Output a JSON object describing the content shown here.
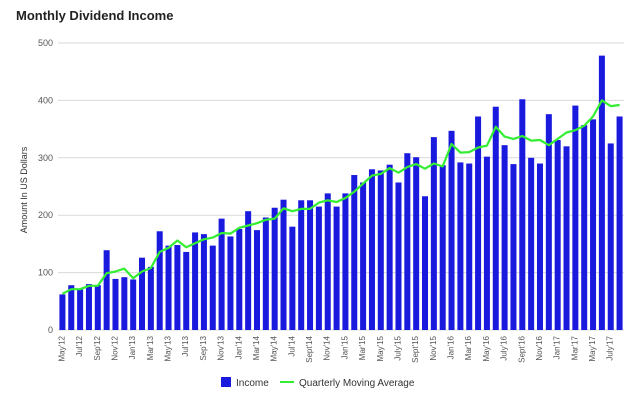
{
  "chart_data": {
    "type": "bar",
    "title": "Monthly Dividend Income",
    "ylabel": "Amount In US Dollars",
    "xlabel": "",
    "ylim": [
      0,
      500
    ],
    "yticks": [
      0,
      100,
      200,
      300,
      400,
      500
    ],
    "grid": true,
    "legend": "bottom",
    "categories": [
      "May'12",
      "Jun'12",
      "Jul'12",
      "Aug'12",
      "Sep'12",
      "Oct'12",
      "Nov'12",
      "Dec'12",
      "Jan'13",
      "Feb'13",
      "Mar'13",
      "Apr'13",
      "May'13",
      "Jun'13",
      "Jul'13",
      "Aug'13",
      "Sep'13",
      "Oct'13",
      "Nov'13",
      "Dec'13",
      "Jan'14",
      "Feb'14",
      "Mar'14",
      "Apr'14",
      "May'14",
      "Jun'14",
      "Jul'14",
      "Aug'14",
      "Sept'14",
      "Oct'14",
      "Nov'14",
      "Dec'14",
      "Jan'15",
      "Feb'15",
      "Mar'15",
      "Apr'15",
      "May'15",
      "Jun'15",
      "July'15",
      "Aug'15",
      "Sept'15",
      "Oct'15",
      "Nov'15",
      "Dec'15",
      "Jan'16",
      "Feb'16",
      "Mar'16",
      "Apr'16",
      "May'16",
      "Jun'16",
      "July'16",
      "Aug'16",
      "Sept'16",
      "Oct'16",
      "Nov'16",
      "Dec'16",
      "Jan'17",
      "Feb'17",
      "Mar'17",
      "Apr'17",
      "May'17",
      "Jun'17",
      "July'17",
      "Aug'17"
    ],
    "tick_labels": [
      "May'12",
      "Jul'12",
      "Sep'12",
      "Nov'12",
      "Jan'13",
      "Mar'13",
      "May'13",
      "Jul'13",
      "Sep'13",
      "Nov'13",
      "Jan'14",
      "Mar'14",
      "May'14",
      "Jul'14",
      "Sept'14",
      "Nov'14",
      "Jan'15",
      "Mar'15",
      "May'15",
      "July'15",
      "Sept'15",
      "Nov'15",
      "Jan'16",
      "Mar'16",
      "May'16",
      "July'16",
      "Sept'16",
      "Nov'16",
      "Jan'17",
      "Mar'17",
      "May'17",
      "July'17"
    ],
    "series": [
      {
        "name": "Income",
        "color": "#1a1adf",
        "values": [
          62,
          78,
          72,
          80,
          78,
          139,
          89,
          92,
          88,
          126,
          110,
          172,
          147,
          148,
          136,
          170,
          167,
          147,
          194,
          163,
          176,
          207,
          174,
          196,
          213,
          227,
          180,
          226,
          226,
          215,
          238,
          215,
          238,
          270,
          257,
          280,
          278,
          288,
          257,
          308,
          301,
          233,
          336,
          287,
          347,
          292,
          290,
          372,
          302,
          389,
          322,
          289,
          402,
          300,
          290,
          376,
          331,
          320,
          391,
          357,
          367,
          478,
          325,
          372
        ]
      },
      {
        "name": "Quarterly Moving Average",
        "color": "#33ee33",
        "values": [
          63,
          71,
          71,
          77,
          77,
          99,
          102,
          107,
          90,
          102,
          108,
          136,
          143,
          156,
          144,
          151,
          158,
          161,
          169,
          168,
          178,
          182,
          186,
          192,
          194,
          212,
          207,
          211,
          211,
          222,
          226,
          223,
          230,
          241,
          255,
          269,
          272,
          282,
          274,
          284,
          289,
          281,
          290,
          285,
          324,
          309,
          310,
          318,
          321,
          354,
          337,
          333,
          338,
          330,
          331,
          322,
          333,
          344,
          348,
          356,
          372,
          400,
          390,
          392
        ]
      }
    ]
  }
}
